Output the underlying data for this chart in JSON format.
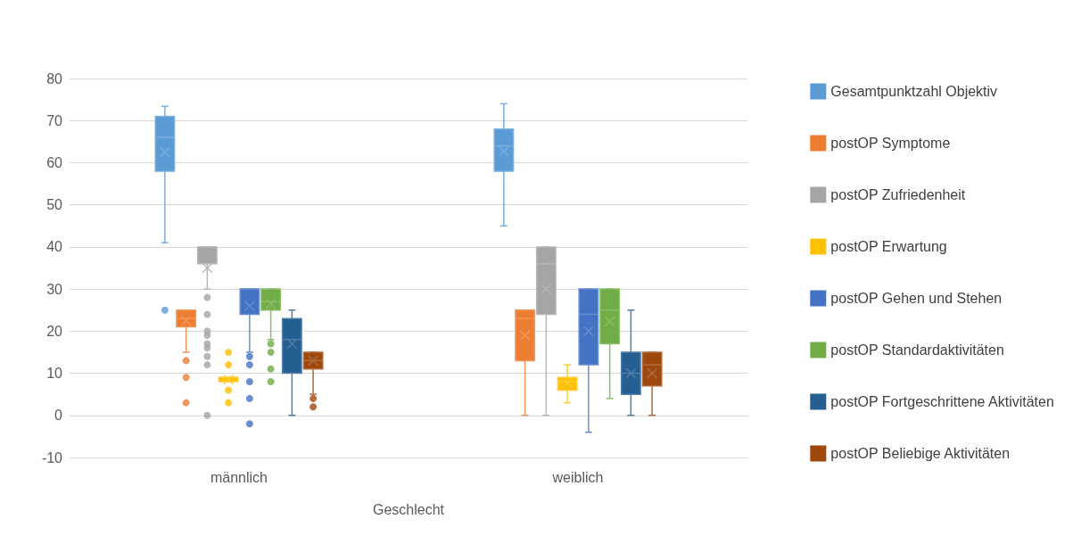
{
  "chart_data": {
    "type": "box",
    "xlabel": "Geschlecht",
    "categories": [
      "männlich",
      "weiblich"
    ],
    "ylim": [
      -10,
      80
    ],
    "yticks": [
      -10,
      0,
      10,
      20,
      30,
      40,
      50,
      60,
      70,
      80
    ],
    "grid": "y",
    "legend": "right",
    "series": [
      {
        "name": "Gesamtpunktzahl Objektiv",
        "color": "#5b9bd5",
        "boxes": [
          {
            "low": 41,
            "q1": 58,
            "median": 66,
            "q3": 71,
            "high": 73.4,
            "mean": 62.5,
            "outliers": [
              25
            ]
          },
          {
            "low": 45,
            "q1": 58,
            "median": 64,
            "q3": 68,
            "high": 74,
            "mean": 62.7
          }
        ]
      },
      {
        "name": "postOP Symptome",
        "color": "#ed7d31",
        "boxes": [
          {
            "low": 15,
            "q1": 21,
            "median": 23,
            "q3": 25,
            "high": 25,
            "mean": 22.5,
            "outliers": [
              13,
              9,
              3
            ]
          },
          {
            "low": 0,
            "q1": 13,
            "median": 23,
            "q3": 25,
            "high": 25,
            "mean": 19
          }
        ]
      },
      {
        "name": "postOP Zufriedenheit",
        "color": "#a5a5a5",
        "boxes": [
          {
            "low": 30,
            "q1": 36,
            "median": 40,
            "q3": 40,
            "high": 40,
            "mean": 35,
            "outliers": [
              28,
              24,
              20,
              19,
              17,
              16,
              14,
              12,
              0
            ]
          },
          {
            "low": 0,
            "q1": 24,
            "median": 36,
            "q3": 40,
            "high": 40,
            "mean": 30
          }
        ]
      },
      {
        "name": "postOP Erwartung",
        "color": "#ffc000",
        "boxes": [
          {
            "low": 8,
            "q1": 8,
            "median": 9,
            "q3": 9,
            "high": 9,
            "mean": 8.5,
            "outliers": [
              15,
              12,
              6,
              3
            ]
          },
          {
            "low": 3,
            "q1": 6,
            "median": 8,
            "q3": 9,
            "high": 12,
            "mean": 7.7
          }
        ]
      },
      {
        "name": "postOP Gehen und Stehen",
        "color": "#4472c4",
        "boxes": [
          {
            "low": 15,
            "q1": 24,
            "median": 30,
            "q3": 30,
            "high": 30,
            "mean": 26,
            "outliers": [
              14,
              12,
              8,
              4,
              -2
            ]
          },
          {
            "low": -4,
            "q1": 12,
            "median": 24,
            "q3": 30,
            "high": 30,
            "mean": 20
          }
        ]
      },
      {
        "name": "postOP Standardaktivitäten",
        "color": "#70ad47",
        "boxes": [
          {
            "low": 18,
            "q1": 25,
            "median": 27,
            "q3": 30,
            "high": 30,
            "mean": 26.5,
            "outliers": [
              17,
              15,
              11,
              8
            ]
          },
          {
            "low": 4,
            "q1": 17,
            "median": 25,
            "q3": 30,
            "high": 30,
            "mean": 22.3
          }
        ]
      },
      {
        "name": "postOP Fortgeschrittene Aktivitäten",
        "color": "#255e91",
        "boxes": [
          {
            "low": 0,
            "q1": 10,
            "median": 18,
            "q3": 23,
            "high": 25,
            "mean": 17
          },
          {
            "low": 0,
            "q1": 5,
            "median": 10,
            "q3": 15,
            "high": 25,
            "mean": 10
          }
        ]
      },
      {
        "name": "postOP Beliebige Aktivitäten",
        "color": "#9e480e",
        "boxes": [
          {
            "low": 5,
            "q1": 11,
            "median": 13,
            "q3": 15,
            "high": 15,
            "mean": 13,
            "outliers": [
              4,
              2
            ]
          },
          {
            "low": 0,
            "q1": 7,
            "median": 12,
            "q3": 15,
            "high": 15,
            "mean": 10
          }
        ]
      }
    ]
  }
}
